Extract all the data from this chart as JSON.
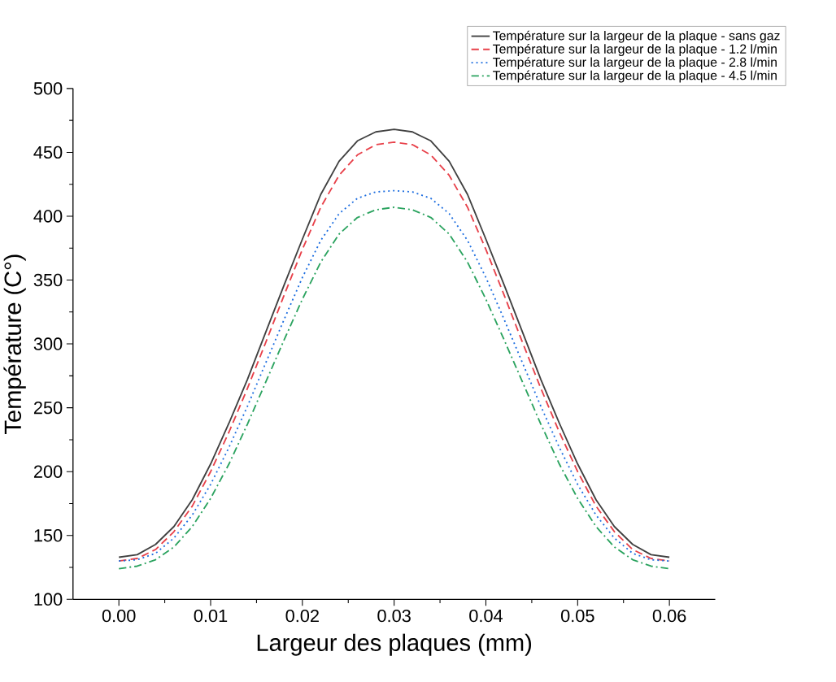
{
  "chart_data": {
    "type": "line",
    "xlabel": "Largeur des plaques (mm)",
    "ylabel": "Température (C°)",
    "x": [
      0,
      0.002,
      0.004,
      0.006,
      0.008,
      0.01,
      0.012,
      0.014,
      0.016,
      0.018,
      0.02,
      0.022,
      0.024,
      0.026,
      0.028,
      0.03,
      0.032,
      0.034,
      0.036,
      0.038,
      0.04,
      0.042,
      0.044,
      0.046,
      0.048,
      0.05,
      0.052,
      0.054,
      0.056,
      0.058,
      0.06
    ],
    "series": [
      {
        "name": "Température sur la largeur de la plaque - sans gaz",
        "color": "#404040",
        "line_style": "solid",
        "values": [
          133,
          135,
          143,
          157,
          178,
          206,
          238,
          272,
          309,
          346,
          382,
          417,
          443,
          459,
          466,
          468,
          466,
          459,
          443,
          417,
          382,
          346,
          309,
          272,
          238,
          206,
          178,
          157,
          143,
          135,
          133
        ]
      },
      {
        "name": "Température sur la largeur de la plaque - 1.2 l/min",
        "color": "#e8414a",
        "line_style": "dashed",
        "values": [
          130,
          132,
          139,
          153,
          173,
          200,
          231,
          265,
          301,
          338,
          374,
          407,
          432,
          448,
          456,
          458,
          456,
          448,
          432,
          407,
          374,
          338,
          301,
          265,
          231,
          200,
          173,
          153,
          139,
          132,
          130
        ]
      },
      {
        "name": "Température sur la largeur de la plaque - 2.8 l/min",
        "color": "#1f6fe0",
        "line_style": "dotted",
        "values": [
          130,
          131,
          136,
          148,
          166,
          190,
          219,
          251,
          285,
          319,
          352,
          381,
          402,
          414,
          419,
          420,
          419,
          414,
          402,
          381,
          352,
          319,
          285,
          251,
          219,
          190,
          166,
          148,
          136,
          131,
          130
        ]
      },
      {
        "name": "Température sur la largeur de la plaque - 4.5 l/min",
        "color": "#2ba35f",
        "line_style": "dashdot",
        "values": [
          124,
          126,
          131,
          141,
          157,
          179,
          206,
          237,
          270,
          303,
          335,
          364,
          386,
          399,
          405,
          407,
          405,
          399,
          386,
          364,
          335,
          303,
          270,
          237,
          206,
          179,
          157,
          141,
          131,
          126,
          124
        ]
      }
    ],
    "xlim": [
      -0.005,
      0.065
    ],
    "ylim": [
      100,
      500
    ],
    "xticks": [
      {
        "value": 0,
        "label": "0.00"
      },
      {
        "value": 0.01,
        "label": "0.01"
      },
      {
        "value": 0.02,
        "label": "0.02"
      },
      {
        "value": 0.03,
        "label": "0.03"
      },
      {
        "value": 0.04,
        "label": "0.04"
      },
      {
        "value": 0.05,
        "label": "0.05"
      },
      {
        "value": 0.06,
        "label": "0.06"
      }
    ],
    "yticks": [
      100,
      150,
      200,
      250,
      300,
      350,
      400,
      450,
      500
    ],
    "legend": "top right",
    "grid": false,
    "marker": "none"
  }
}
